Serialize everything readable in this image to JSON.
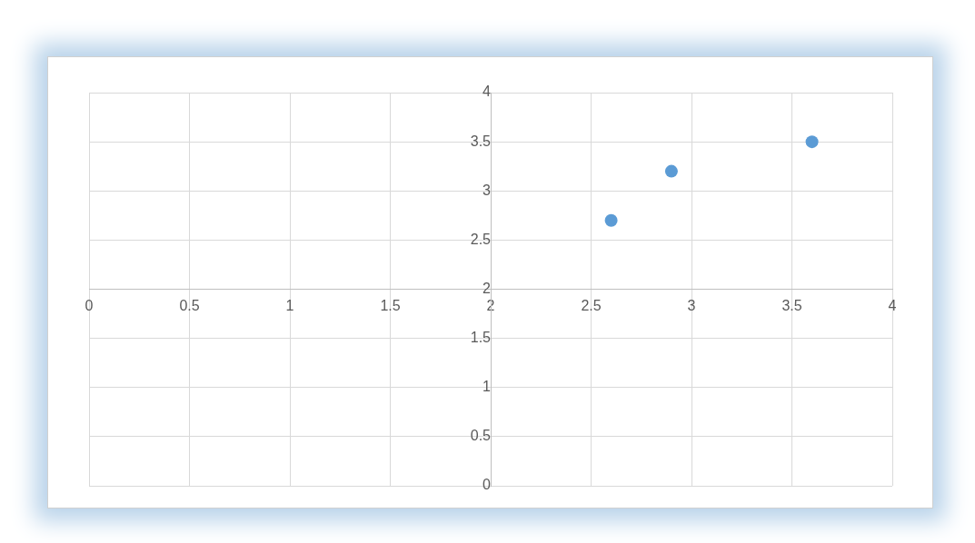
{
  "chart_data": {
    "type": "scatter",
    "series": [
      {
        "color": "#5b9bd5",
        "x": [
          2.6,
          2.9,
          3.6
        ],
        "values": [
          2.7,
          3.2,
          3.5
        ]
      }
    ],
    "xlim": [
      0,
      4
    ],
    "xticks": [
      0,
      0.5,
      1,
      1.5,
      2,
      2.5,
      3,
      3.5,
      4
    ],
    "ylim": [
      0,
      4
    ],
    "yticks": [
      0,
      0.5,
      1,
      1.5,
      2,
      2.5,
      3,
      3.5,
      4
    ],
    "grid": true,
    "legend": false,
    "marker": "circle"
  }
}
